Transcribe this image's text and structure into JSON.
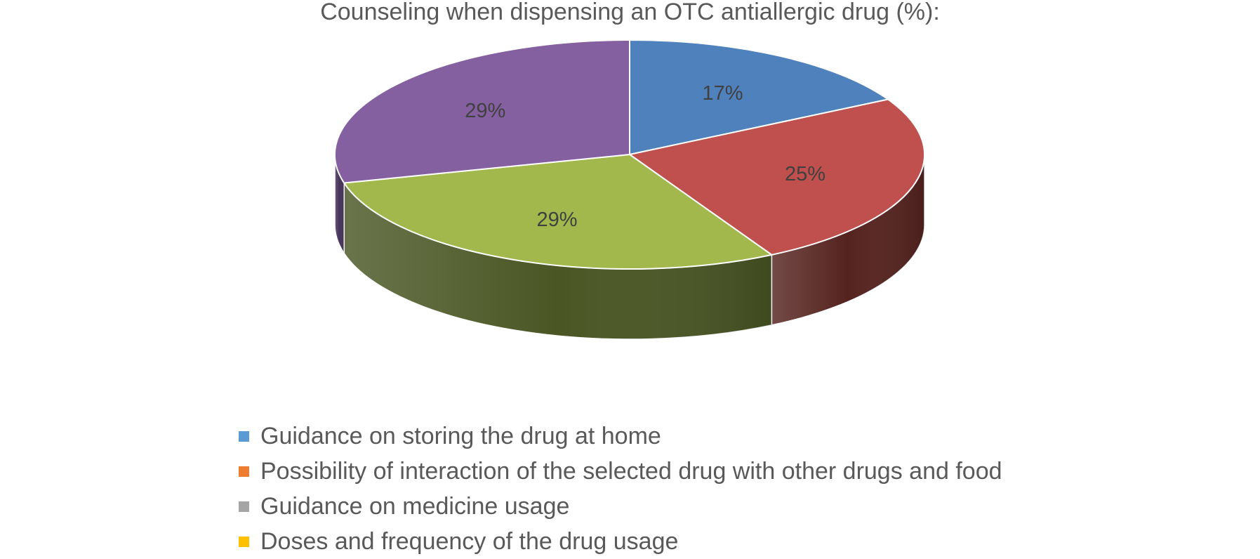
{
  "chart_data": {
    "type": "pie",
    "title": "Counseling when dispensing an OTC antiallergic drug (%):",
    "slices": [
      {
        "value": 17,
        "label": "17%",
        "top_color": "#4F81BD",
        "side_color": "#2E4B70"
      },
      {
        "value": 25,
        "label": "25%",
        "top_color": "#C0504D",
        "side_color": "#55231F"
      },
      {
        "value": 29,
        "label": "29%",
        "top_color": "#A2B84C",
        "side_color": "#4A5624"
      },
      {
        "value": 29,
        "label": "29%",
        "top_color": "#8460A0",
        "side_color": "#46325A"
      }
    ],
    "legend": [
      {
        "label": "Guidance on storing the drug at home",
        "color": "#5B9BD5"
      },
      {
        "label": "Possibility of interaction of the selected drug with other drugs and food",
        "color": "#ED7D31"
      },
      {
        "label": "Guidance on medicine usage",
        "color": "#A5A5A5"
      },
      {
        "label": "Doses and frequency of the drug usage",
        "color": "#FFC000"
      }
    ],
    "legend_position": "bottom",
    "style": "3d"
  }
}
